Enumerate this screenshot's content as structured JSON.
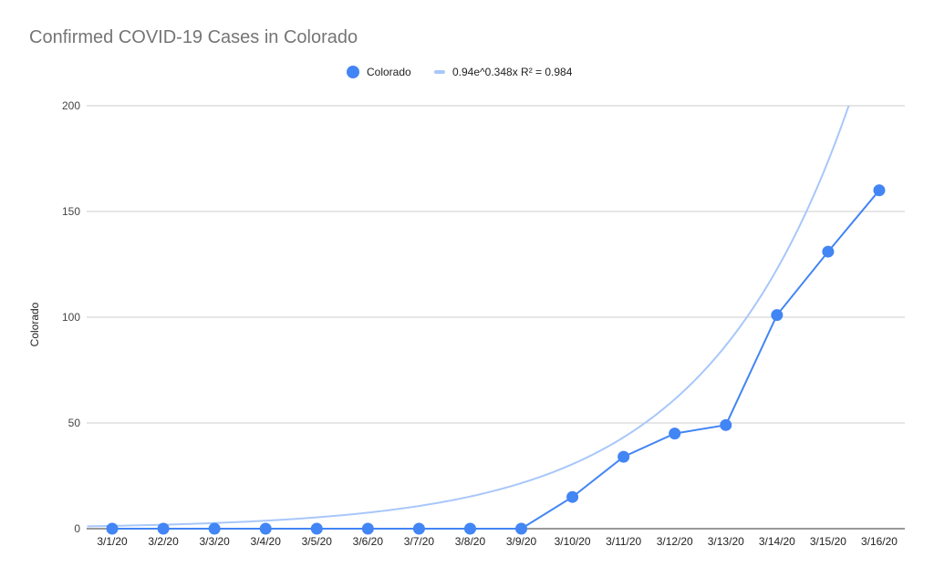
{
  "chart_data": {
    "type": "line",
    "title": "Confirmed COVID-19 Cases in Colorado",
    "xlabel": "",
    "ylabel": "Colorado",
    "categories": [
      "3/1/20",
      "3/2/20",
      "3/3/20",
      "3/4/20",
      "3/5/20",
      "3/6/20",
      "3/7/20",
      "3/8/20",
      "3/9/20",
      "3/10/20",
      "3/11/20",
      "3/12/20",
      "3/13/20",
      "3/14/20",
      "3/15/20",
      "3/16/20"
    ],
    "ylim": [
      0,
      200
    ],
    "yticks": [
      0,
      50,
      100,
      150,
      200
    ],
    "grid": true,
    "legend_position": "top",
    "series": [
      {
        "name": "Colorado",
        "values": [
          0,
          0,
          0,
          0,
          0,
          0,
          0,
          0,
          0,
          15,
          34,
          45,
          49,
          101,
          131,
          160
        ],
        "color": "#4285f4"
      }
    ],
    "trendline": {
      "label": "0.94e^0.348x R² = 0.984",
      "type": "exponential",
      "coefficient": 0.94,
      "exponent": 0.348,
      "color": "#a8c7fa"
    }
  }
}
